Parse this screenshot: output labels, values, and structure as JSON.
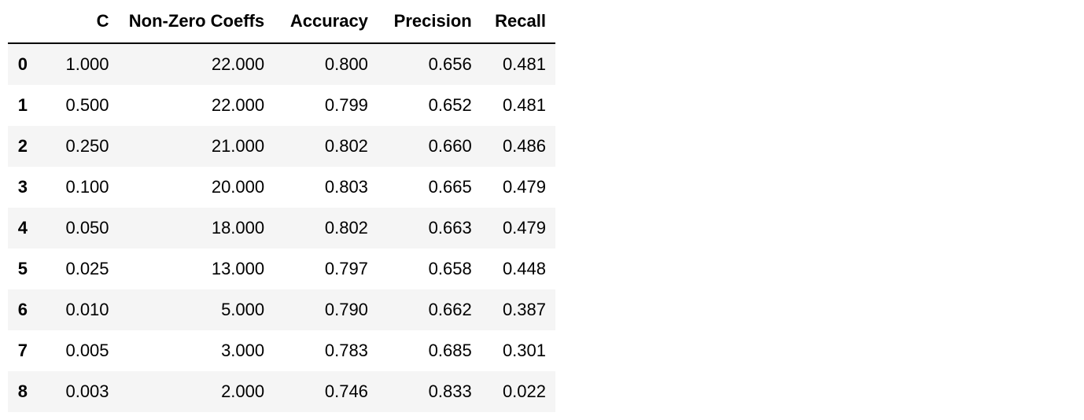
{
  "table": {
    "index_header": "",
    "columns": [
      "C",
      "Non-Zero Coeffs",
      "Accuracy",
      "Precision",
      "Recall"
    ],
    "rows": [
      {
        "index": "0",
        "values": [
          "1.000",
          "22.000",
          "0.800",
          "0.656",
          "0.481"
        ]
      },
      {
        "index": "1",
        "values": [
          "0.500",
          "22.000",
          "0.799",
          "0.652",
          "0.481"
        ]
      },
      {
        "index": "2",
        "values": [
          "0.250",
          "21.000",
          "0.802",
          "0.660",
          "0.486"
        ]
      },
      {
        "index": "3",
        "values": [
          "0.100",
          "20.000",
          "0.803",
          "0.665",
          "0.479"
        ]
      },
      {
        "index": "4",
        "values": [
          "0.050",
          "18.000",
          "0.802",
          "0.663",
          "0.479"
        ]
      },
      {
        "index": "5",
        "values": [
          "0.025",
          "13.000",
          "0.797",
          "0.658",
          "0.448"
        ]
      },
      {
        "index": "6",
        "values": [
          "0.010",
          "5.000",
          "0.790",
          "0.662",
          "0.387"
        ]
      },
      {
        "index": "7",
        "values": [
          "0.005",
          "3.000",
          "0.783",
          "0.685",
          "0.301"
        ]
      },
      {
        "index": "8",
        "values": [
          "0.003",
          "2.000",
          "0.746",
          "0.833",
          "0.022"
        ]
      }
    ]
  }
}
